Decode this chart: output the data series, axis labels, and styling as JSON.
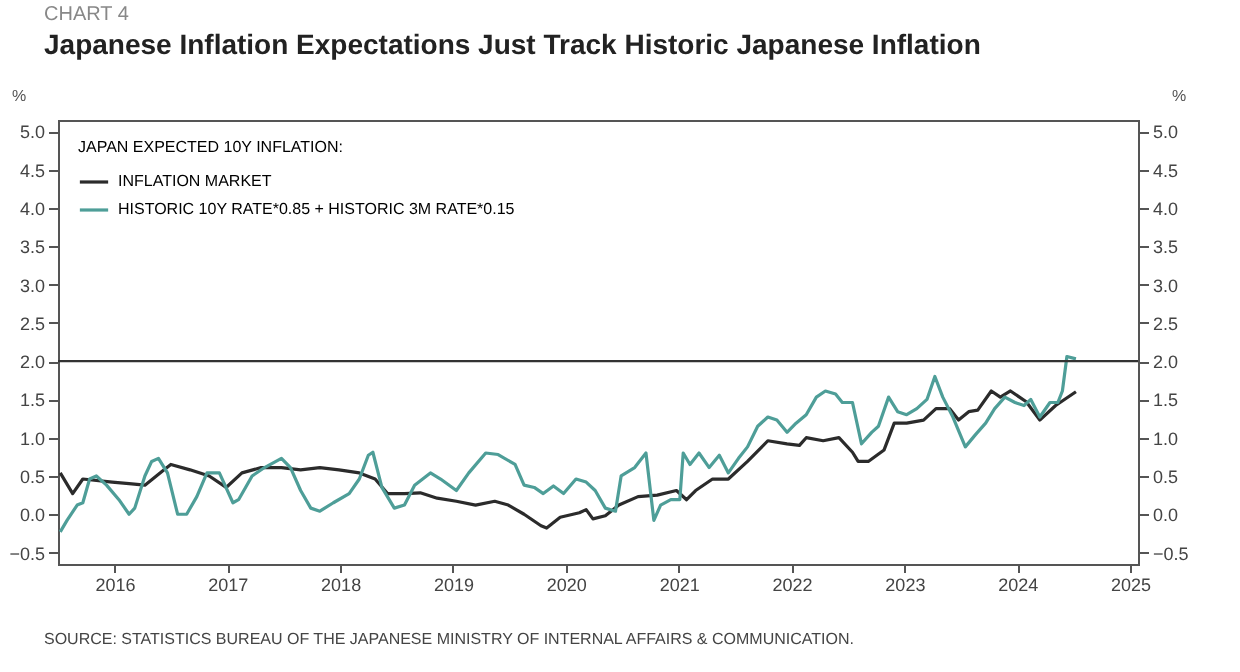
{
  "chart_data": {
    "type": "line",
    "title": "Japanese Inflation Expectations Just Track Historic Japanese Inflation",
    "annotations": [
      "CHART 4",
      "SOURCE: STATISTICS BUREAU OF THE JAPANESE MINISTRY OF INTERNAL AFFAIRS & COMMUNICATION."
    ],
    "ylabel": "%",
    "y2label": "%",
    "legend_title": "JAPAN EXPECTED 10Y INFLATION:",
    "legend": "top left",
    "series": [
      {
        "name": "INFLATION MARKET",
        "color": "#2b2b2b",
        "x": [
          2016.02,
          2016.13,
          2016.22,
          2016.48,
          2016.63,
          2016.77,
          2016.94,
          2017.0,
          2017.17,
          2017.34,
          2017.49,
          2017.63,
          2017.8,
          2017.98,
          2018.15,
          2018.32,
          2018.49,
          2018.67,
          2018.81,
          2018.92,
          2019.07,
          2019.21,
          2019.36,
          2019.53,
          2019.7,
          2019.87,
          2019.99,
          2020.13,
          2020.28,
          2020.33,
          2020.45,
          2020.62,
          2020.68,
          2020.74,
          2020.85,
          2020.97,
          2021.14,
          2021.31,
          2021.48,
          2021.57,
          2021.65,
          2021.8,
          2021.94,
          2022.11,
          2022.29,
          2022.46,
          2022.57,
          2022.63,
          2022.78,
          2022.92,
          2023.04,
          2023.09,
          2023.18,
          2023.32,
          2023.41,
          2023.52,
          2023.67,
          2023.78,
          2023.9,
          2023.98,
          2024.07,
          2024.15,
          2024.27,
          2024.35,
          2024.44,
          2024.58,
          2024.7,
          2024.84,
          2025.02
        ],
        "values": [
          0.54,
          0.27,
          0.46,
          0.42,
          0.4,
          0.38,
          0.58,
          0.65,
          0.58,
          0.5,
          0.35,
          0.54,
          0.61,
          0.61,
          0.58,
          0.61,
          0.58,
          0.54,
          0.46,
          0.27,
          0.27,
          0.28,
          0.21,
          0.17,
          0.12,
          0.17,
          0.12,
          0.0,
          -0.15,
          -0.18,
          -0.04,
          0.02,
          0.06,
          -0.06,
          -0.02,
          0.12,
          0.23,
          0.25,
          0.31,
          0.19,
          0.31,
          0.46,
          0.46,
          0.69,
          0.96,
          0.92,
          0.9,
          1.0,
          0.96,
          1.0,
          0.81,
          0.69,
          0.69,
          0.84,
          1.19,
          1.19,
          1.23,
          1.38,
          1.38,
          1.23,
          1.34,
          1.36,
          1.61,
          1.53,
          1.61,
          1.47,
          1.23,
          1.42,
          1.6
        ]
      },
      {
        "name": "HISTORIC 10Y RATE*0.85 + HISTORIC 3M RATE*0.15",
        "color": "#4e9e98",
        "x": [
          2016.02,
          2016.08,
          2016.17,
          2016.22,
          2016.28,
          2016.34,
          2016.43,
          2016.54,
          2016.63,
          2016.68,
          2016.77,
          2016.83,
          2016.89,
          2016.97,
          2017.06,
          2017.14,
          2017.23,
          2017.32,
          2017.43,
          2017.55,
          2017.6,
          2017.72,
          2017.83,
          2017.98,
          2018.06,
          2018.15,
          2018.24,
          2018.32,
          2018.44,
          2018.58,
          2018.67,
          2018.75,
          2018.79,
          2018.87,
          2018.98,
          2019.07,
          2019.16,
          2019.3,
          2019.39,
          2019.53,
          2019.64,
          2019.79,
          2019.9,
          2020.05,
          2020.13,
          2020.22,
          2020.3,
          2020.39,
          2020.48,
          2020.59,
          2020.68,
          2020.76,
          2020.85,
          2020.94,
          2020.99,
          2021.11,
          2021.21,
          2021.28,
          2021.34,
          2021.43,
          2021.51,
          2021.54,
          2021.6,
          2021.68,
          2021.77,
          2021.86,
          2021.94,
          2022.03,
          2022.11,
          2022.2,
          2022.29,
          2022.37,
          2022.46,
          2022.54,
          2022.63,
          2022.72,
          2022.8,
          2022.89,
          2022.95,
          2023.04,
          2023.12,
          2023.21,
          2023.27,
          2023.36,
          2023.44,
          2023.52,
          2023.61,
          2023.7,
          2023.77,
          2023.84,
          2023.93,
          2024.04,
          2024.13,
          2024.22,
          2024.3,
          2024.39,
          2024.48,
          2024.56,
          2024.62,
          2024.7,
          2024.79,
          2024.86,
          2024.9,
          2024.94,
          2025.02
        ],
        "values": [
          -0.23,
          -0.08,
          0.12,
          0.15,
          0.46,
          0.5,
          0.38,
          0.19,
          0.0,
          0.08,
          0.5,
          0.69,
          0.73,
          0.54,
          0.0,
          0.0,
          0.23,
          0.54,
          0.54,
          0.15,
          0.19,
          0.5,
          0.61,
          0.73,
          0.61,
          0.31,
          0.08,
          0.04,
          0.15,
          0.27,
          0.46,
          0.77,
          0.81,
          0.35,
          0.08,
          0.12,
          0.38,
          0.54,
          0.46,
          0.31,
          0.54,
          0.8,
          0.78,
          0.65,
          0.38,
          0.35,
          0.27,
          0.37,
          0.27,
          0.46,
          0.42,
          0.31,
          0.08,
          0.04,
          0.5,
          0.61,
          0.8,
          -0.08,
          0.12,
          0.19,
          0.19,
          0.8,
          0.65,
          0.8,
          0.61,
          0.77,
          0.54,
          0.73,
          0.88,
          1.15,
          1.27,
          1.23,
          1.07,
          1.19,
          1.3,
          1.53,
          1.61,
          1.57,
          1.46,
          1.46,
          0.92,
          1.07,
          1.15,
          1.53,
          1.34,
          1.3,
          1.38,
          1.5,
          1.8,
          1.53,
          1.27,
          0.88,
          1.04,
          1.19,
          1.38,
          1.53,
          1.46,
          1.42,
          1.5,
          1.27,
          1.46,
          1.46,
          1.61,
          2.06,
          2.03
        ]
      }
    ],
    "xlim": [
      2016.0,
      2025.57
    ],
    "xticks": [
      {
        "value": 2016.5,
        "label": "2016"
      },
      {
        "value": 2017.5,
        "label": "2017"
      },
      {
        "value": 2018.5,
        "label": "2018"
      },
      {
        "value": 2019.5,
        "label": "2019"
      },
      {
        "value": 2020.5,
        "label": "2020"
      },
      {
        "value": 2021.5,
        "label": "2021"
      },
      {
        "value": 2022.5,
        "label": "2022"
      },
      {
        "value": 2023.5,
        "label": "2023"
      },
      {
        "value": 2024.5,
        "label": "2024"
      },
      {
        "value": 2025.5,
        "label": "2025"
      }
    ],
    "ylim": [
      -0.65,
      5.15
    ],
    "yticks": [
      -0.5,
      {
        "value": 0,
        "label": "0.0"
      },
      0.5,
      {
        "value": 1,
        "label": "1.0"
      },
      1.5,
      {
        "value": 2,
        "label": "2.0"
      },
      2.5,
      {
        "value": 3,
        "label": "3.0"
      },
      3.5,
      {
        "value": 4,
        "label": "4.0"
      },
      4.5,
      {
        "value": 5,
        "label": "5.0"
      }
    ],
    "y2lim": [
      -0.65,
      5.15
    ],
    "y2ticks": [
      -0.5,
      {
        "value": 0,
        "label": "0.0"
      },
      0.5,
      {
        "value": 1,
        "label": "1.0"
      },
      1.5,
      {
        "value": 2,
        "label": "2.0"
      },
      2.5,
      {
        "value": 3,
        "label": "3.0"
      },
      3.5,
      {
        "value": 4,
        "label": "4.0"
      },
      4.5,
      {
        "value": 5,
        "label": "5.0"
      }
    ],
    "ref_lines": [
      {
        "axis": "y",
        "value": 2.0,
        "color": "#333333"
      }
    ],
    "grid": false
  }
}
